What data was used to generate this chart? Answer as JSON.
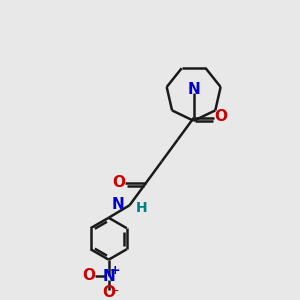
{
  "bg_color": "#e8e8e8",
  "bond_color": "#1a1a1a",
  "N_color": "#0000cc",
  "O_color": "#cc0000",
  "H_color": "#008080",
  "line_width": 1.8,
  "font_size_atom": 10,
  "fig_size": [
    3.0,
    3.0
  ],
  "dpi": 100,
  "xlim": [
    0,
    10
  ],
  "ylim": [
    0,
    10
  ]
}
